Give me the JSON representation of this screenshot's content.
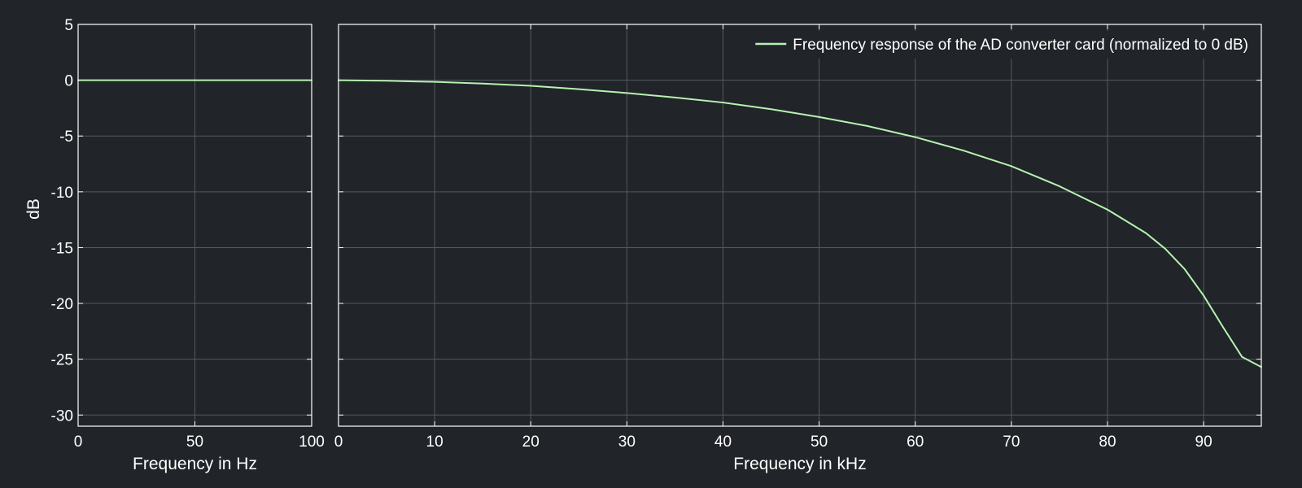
{
  "chart_data": [
    {
      "type": "line",
      "title": "",
      "xlabel": "Frequency in Hz",
      "ylabel": "dB",
      "xlim": [
        0,
        100
      ],
      "ylim": [
        -31,
        5
      ],
      "xticks": [
        0,
        50,
        100
      ],
      "yticks": [
        5,
        0,
        -5,
        -10,
        -15,
        -20,
        -25,
        -30
      ],
      "grid": true,
      "series": [
        {
          "x": [
            0,
            25,
            50,
            75,
            100
          ],
          "y": [
            0,
            0,
            0,
            0,
            0
          ]
        }
      ]
    },
    {
      "type": "line",
      "title": "",
      "xlabel": "Frequency in kHz",
      "ylabel": "",
      "xlim": [
        0,
        96
      ],
      "ylim": [
        -31,
        5
      ],
      "xticks": [
        0,
        10,
        20,
        30,
        40,
        50,
        60,
        70,
        80,
        90
      ],
      "yticks": [
        5,
        0,
        -5,
        -10,
        -15,
        -20,
        -25,
        -30
      ],
      "grid": true,
      "legend_position": "top-right",
      "series": [
        {
          "name": "Frequency response of the AD converter card (normalized to 0 dB)",
          "x": [
            0,
            5,
            10,
            15,
            20,
            25,
            30,
            35,
            40,
            45,
            50,
            55,
            60,
            65,
            70,
            75,
            80,
            84,
            86,
            88,
            90,
            92,
            94,
            96
          ],
          "y": [
            0,
            -0.05,
            -0.15,
            -0.3,
            -0.5,
            -0.8,
            -1.15,
            -1.55,
            -2.0,
            -2.6,
            -3.3,
            -4.1,
            -5.1,
            -6.3,
            -7.7,
            -9.5,
            -11.6,
            -13.7,
            -15.1,
            -16.9,
            -19.3,
            -22.1,
            -24.8,
            -25.7
          ]
        }
      ]
    }
  ],
  "colors": {
    "background": "#212429",
    "axes": "#ffffff",
    "grid": "#555a61",
    "line": "#b6f2b1"
  }
}
